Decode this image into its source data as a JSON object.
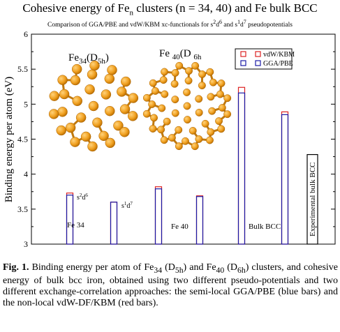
{
  "title": "Cohesive energy of Fen clusters (n = 34, 40) and Fe bulk BCC",
  "subtitle": "Comparison of GGA/PBE and vdW/KBM xc-functionals for s²d⁶ and s¹d⁷ pseudopotentials",
  "caption": {
    "label": "Fig. 1.",
    "text": "Binding energy per atom of Fe34 (D5h) and Fe40 (D6h) clusters, and cohesive energy of bulk bcc iron, obtained using two different pseudo-potentials and two different exchange-correlation approaches: the semi-local GGA/PBE (blue bars) and the non-local vdW-DF/KBM (red bars)."
  },
  "chart_data": {
    "type": "bar",
    "ylabel": "Binding energy per atom (eV)",
    "ylim": [
      3,
      6
    ],
    "yticks": [
      3,
      3.5,
      4,
      4.5,
      5,
      5.5,
      6
    ],
    "legend_position": "top-right",
    "series": [
      {
        "name": "vdW/KBM",
        "color": "#dd2222"
      },
      {
        "name": "GGA/PBE",
        "color": "#1a1aa6"
      }
    ],
    "bars": [
      {
        "group": "Fe 34",
        "pseudo": "s2d6",
        "gga": 3.7,
        "vdw": 3.73
      },
      {
        "group": "Fe 34",
        "pseudo": "s1d7",
        "gga": 3.6,
        "vdw": 3.6
      },
      {
        "group": "Fe 40",
        "pseudo": "s2d6",
        "gga": 3.79,
        "vdw": 3.82
      },
      {
        "group": "Fe 40",
        "pseudo": "s1d7",
        "gga": 3.68,
        "vdw": 3.69
      },
      {
        "group": "Bulk BCC",
        "pseudo": "s2d6",
        "gga": 5.16,
        "vdw": 5.24
      },
      {
        "group": "Bulk BCC",
        "pseudo": "s1d7",
        "gga": 4.85,
        "vdw": 4.89
      }
    ],
    "experimental": {
      "label": "Experimental bulk BCC",
      "value": 4.28
    },
    "annotations": {
      "s2d6": "s2d6",
      "s1d7": "s1d7",
      "fe34_group": "Fe 34",
      "fe40_group": "Fe 40",
      "bulk_group": "Bulk BCC",
      "fe34_cluster": "Fe34(D5h)",
      "fe40_cluster": "Fe 40(D 6h)"
    }
  }
}
